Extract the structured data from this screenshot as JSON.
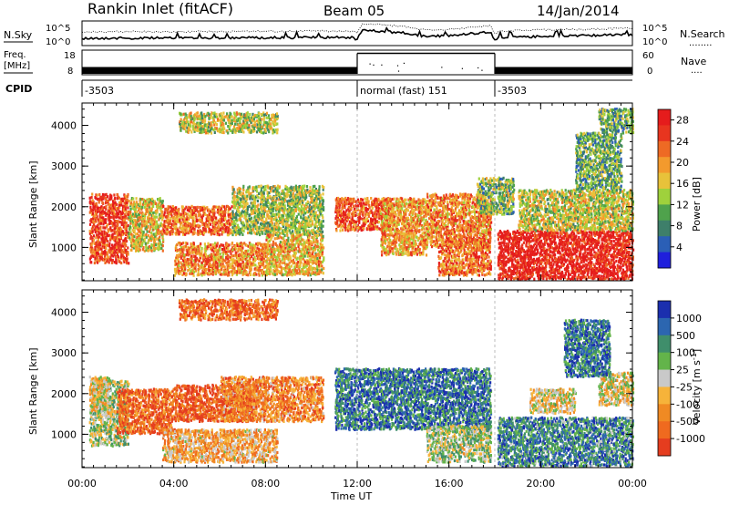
{
  "header": {
    "title": "Rankin Inlet (fitACF)",
    "beam": "Beam 05",
    "date": "14/Jan/2014"
  },
  "noise_panel": {
    "left_label": "N.Sky",
    "right_label": "N.Search",
    "tick_top": "10^5",
    "tick_bottom": "10^0",
    "right_tick_top": "10^5",
    "right_tick_bottom": "10^0",
    "legend_dots": "........"
  },
  "freq_panel": {
    "left_label_1": "Freq.",
    "left_label_2": "[MHz]",
    "tick_top": "18",
    "tick_bottom": "8",
    "right_label": "Nave",
    "right_tick_top": "60",
    "right_tick_bottom": "0",
    "legend_dots": "....",
    "frequency_mhz": [
      {
        "start": "00:00",
        "end": "12:00",
        "value": 11
      },
      {
        "start": "12:00",
        "end": "18:00",
        "value": 17
      },
      {
        "start": "18:00",
        "end": "24:00",
        "value": 11
      }
    ]
  },
  "cpid_panel": {
    "label": "CPID",
    "segments": [
      {
        "start": "00:00",
        "end": "12:00",
        "text": "-3503"
      },
      {
        "start": "12:00",
        "end": "18:00",
        "text": "normal (fast) 151"
      },
      {
        "start": "18:00",
        "end": "24:00",
        "text": "-3503"
      }
    ]
  },
  "chart_data": [
    {
      "type": "heatmap",
      "name": "power",
      "ylabel": "Slant Range [km]",
      "xlabel": "Time UT",
      "x_ticks": [
        "00:00",
        "04:00",
        "08:00",
        "12:00",
        "16:00",
        "20:00",
        "00:00"
      ],
      "y_ticks": [
        "1000",
        "2000",
        "3000",
        "4000"
      ],
      "x_range_hours": [
        0,
        24
      ],
      "y_range_km": [
        180,
        4550
      ],
      "colorbar": {
        "label": "Power [dB]",
        "ticks": [
          "4",
          "8",
          "12",
          "16",
          "20",
          "24",
          "28"
        ],
        "range": [
          0,
          30
        ],
        "colors": [
          "#1f1fdc",
          "#2b5fb6",
          "#3e7f6a",
          "#4fa24c",
          "#9fd13c",
          "#e8c23a",
          "#f39a2d",
          "#ee6a24",
          "#e8351f",
          "#e51c1c"
        ]
      },
      "regions": [
        {
          "t0": 0.3,
          "t1": 2.0,
          "r0": 600,
          "r1": 2300,
          "level": 0.85
        },
        {
          "t0": 2.0,
          "t1": 3.5,
          "r0": 900,
          "r1": 2200,
          "level": 0.55
        },
        {
          "t0": 3.5,
          "t1": 6.5,
          "r0": 1300,
          "r1": 2000,
          "level": 0.75
        },
        {
          "t0": 4.0,
          "t1": 8.0,
          "r0": 300,
          "r1": 1100,
          "level": 0.7
        },
        {
          "t0": 6.5,
          "t1": 10.5,
          "r0": 1300,
          "r1": 2500,
          "level": 0.45
        },
        {
          "t0": 8.0,
          "t1": 10.5,
          "r0": 300,
          "r1": 1300,
          "level": 0.6
        },
        {
          "t0": 4.2,
          "t1": 8.5,
          "r0": 3800,
          "r1": 4300,
          "level": 0.5
        },
        {
          "t0": 11.0,
          "t1": 13.5,
          "r0": 1400,
          "r1": 2200,
          "level": 0.8
        },
        {
          "t0": 13.0,
          "t1": 15.0,
          "r0": 800,
          "r1": 2200,
          "level": 0.65
        },
        {
          "t0": 15.0,
          "t1": 17.8,
          "r0": 1000,
          "r1": 2300,
          "level": 0.7
        },
        {
          "t0": 15.5,
          "t1": 17.8,
          "r0": 300,
          "r1": 1200,
          "level": 0.75
        },
        {
          "t0": 17.2,
          "t1": 18.8,
          "r0": 1800,
          "r1": 2700,
          "level": 0.4
        },
        {
          "t0": 18.1,
          "t1": 24.0,
          "r0": 200,
          "r1": 1400,
          "level": 0.95
        },
        {
          "t0": 19.0,
          "t1": 24.0,
          "r0": 1400,
          "r1": 2400,
          "level": 0.5
        },
        {
          "t0": 21.5,
          "t1": 23.5,
          "r0": 2400,
          "r1": 3800,
          "level": 0.35
        },
        {
          "t0": 22.5,
          "t1": 24.0,
          "r0": 3800,
          "r1": 4400,
          "level": 0.35
        }
      ]
    },
    {
      "type": "heatmap",
      "name": "velocity",
      "ylabel": "Slant Range [km]",
      "xlabel": "Time UT",
      "x_ticks": [
        "00:00",
        "04:00",
        "08:00",
        "12:00",
        "16:00",
        "20:00",
        "00:00"
      ],
      "y_ticks": [
        "1000",
        "2000",
        "3000",
        "4000"
      ],
      "x_range_hours": [
        0,
        24
      ],
      "y_range_km": [
        180,
        4550
      ],
      "colorbar": {
        "label": "Velocity [m s^-1]",
        "ticks": [
          "1000",
          "500",
          "100",
          "25",
          "-25",
          "-100",
          "-500",
          "-1000"
        ],
        "colors": [
          "#1b2fae",
          "#2c66b0",
          "#3f8e6b",
          "#63b44a",
          "#c9c9c9",
          "#f6b33a",
          "#f08a23",
          "#ef6a1f",
          "#e53d1f"
        ]
      },
      "regions": [
        {
          "t0": 0.3,
          "t1": 2.0,
          "r0": 700,
          "r1": 2300,
          "level": 0.55
        },
        {
          "t0": 1.5,
          "t1": 4.0,
          "r0": 1000,
          "r1": 2100,
          "level": 0.15
        },
        {
          "t0": 4.0,
          "t1": 7.5,
          "r0": 1300,
          "r1": 2200,
          "level": 0.1
        },
        {
          "t0": 3.5,
          "t1": 8.5,
          "r0": 300,
          "r1": 1100,
          "level": 0.35
        },
        {
          "t0": 6.0,
          "t1": 10.5,
          "r0": 1300,
          "r1": 2400,
          "level": 0.25
        },
        {
          "t0": 4.2,
          "t1": 8.5,
          "r0": 3800,
          "r1": 4300,
          "level": 0.15
        },
        {
          "t0": 11.0,
          "t1": 17.8,
          "r0": 1100,
          "r1": 2600,
          "level": 0.8
        },
        {
          "t0": 15.0,
          "t1": 17.8,
          "r0": 300,
          "r1": 1200,
          "level": 0.55
        },
        {
          "t0": 18.1,
          "t1": 24.0,
          "r0": 200,
          "r1": 1400,
          "level": 0.75
        },
        {
          "t0": 19.5,
          "t1": 21.5,
          "r0": 1500,
          "r1": 2100,
          "level": 0.45
        },
        {
          "t0": 22.5,
          "t1": 24.0,
          "r0": 1700,
          "r1": 2500,
          "level": 0.45
        },
        {
          "t0": 21.0,
          "t1": 23.0,
          "r0": 2400,
          "r1": 3800,
          "level": 0.8
        },
        {
          "t0": 0.3,
          "t1": 1.2,
          "r0": 1500,
          "r1": 2400,
          "level": 0.45
        }
      ]
    }
  ]
}
